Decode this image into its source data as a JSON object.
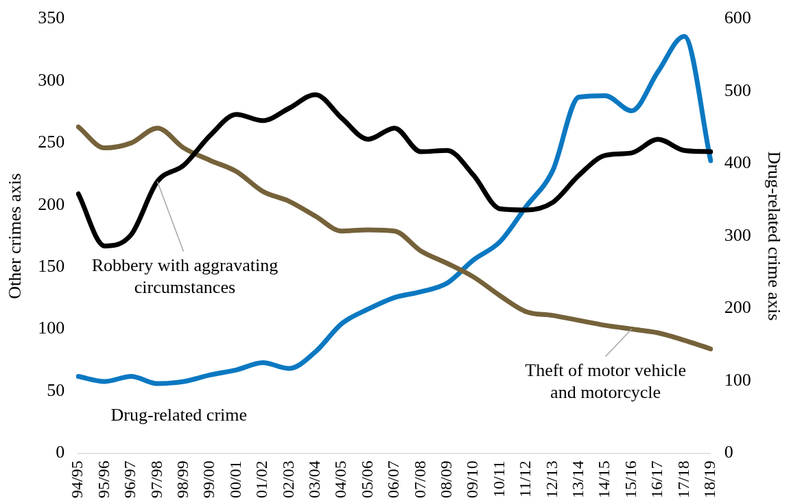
{
  "chart_data": {
    "type": "line",
    "ylabel": "Other crimes axis",
    "y2label": "Drug-related crime axis",
    "categories": [
      "94/95",
      "95/96",
      "96/97",
      "97/98",
      "98/99",
      "99/00",
      "00/01",
      "01/02",
      "02/03",
      "03/04",
      "04/05",
      "05/06",
      "06/07",
      "07/08",
      "08/09",
      "09/10",
      "10/11",
      "11/12",
      "12/13",
      "13/14",
      "14/15",
      "15/16",
      "16/17",
      "17/18",
      "18/19"
    ],
    "series": [
      {
        "name": "Robbery with aggravating circumstances",
        "color": "#000000",
        "values": [
          209,
          167,
          176,
          219,
          232,
          256,
          273,
          268,
          278,
          289,
          270,
          253,
          262,
          243,
          244,
          224,
          197,
          196,
          202,
          224,
          240,
          242,
          253,
          244,
          243
        ]
      },
      {
        "name": "Theft of motor vehicle and motorcycle",
        "color": "#75623a",
        "values": [
          263,
          246,
          250,
          262,
          246,
          236,
          227,
          211,
          203,
          191,
          179,
          180,
          179,
          163,
          153,
          142,
          127,
          114,
          111,
          107,
          103,
          100,
          97,
          91,
          84
        ]
      },
      {
        "name": "Drug-related crime",
        "color": "#0b78c1",
        "axis": "y2",
        "values": [
          106,
          99,
          106,
          96,
          99,
          108,
          115,
          125,
          117,
          140,
          179,
          199,
          215,
          223,
          235,
          267,
          292,
          341,
          390,
          492,
          494,
          473,
          527,
          576,
          404
        ]
      }
    ],
    "ylim": [
      0,
      350
    ],
    "yticks": [
      0,
      50,
      100,
      150,
      200,
      250,
      300,
      350
    ],
    "y2lim": [
      0,
      600
    ],
    "y2ticks": [
      0,
      100,
      200,
      300,
      400,
      500,
      600
    ],
    "grid": false,
    "legend": false,
    "marker": "none",
    "line_style": "solid"
  }
}
